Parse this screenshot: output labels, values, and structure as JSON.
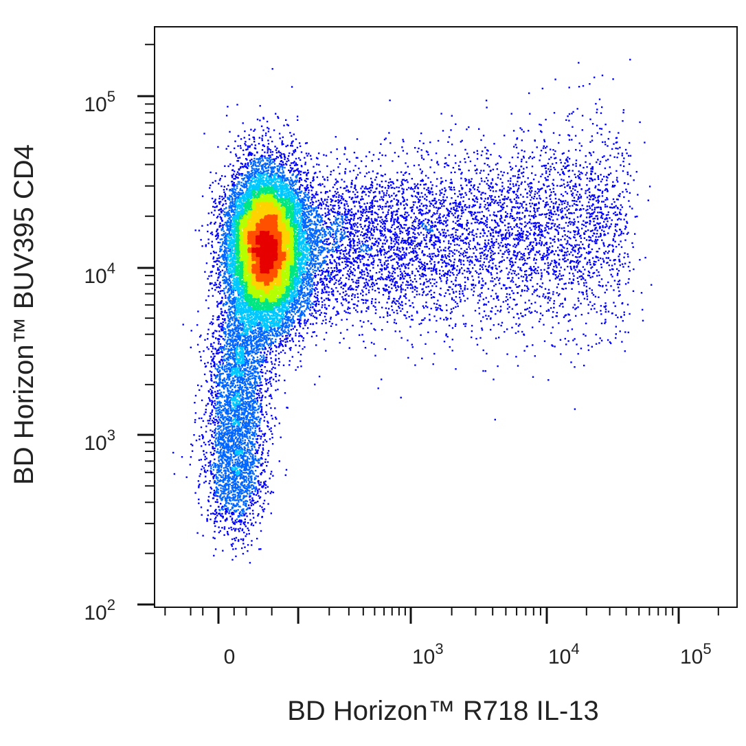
{
  "chart_data": {
    "type": "scatter",
    "title": "",
    "xlabel": "BD Horizon™ R718 IL-13",
    "ylabel": "BD Horizon™ BUV395 CD4",
    "x_scale": "biexponential (logicle)",
    "y_scale": "log",
    "x_tick_labels": [
      {
        "value": 0,
        "label": "0"
      },
      {
        "value": 1000,
        "base": "10",
        "exp": "3"
      },
      {
        "value": 10000,
        "base": "10",
        "exp": "4"
      },
      {
        "value": 100000,
        "base": "10",
        "exp": "5"
      }
    ],
    "y_tick_labels": [
      {
        "value": 100,
        "base": "10",
        "exp": "2"
      },
      {
        "value": 1000,
        "base": "10",
        "exp": "3"
      },
      {
        "value": 10000,
        "base": "10",
        "exp": "4"
      },
      {
        "value": 100000,
        "base": "10",
        "exp": "5"
      }
    ],
    "xlim": [
      -250,
      250000
    ],
    "ylim": [
      100,
      250000
    ],
    "grid": false,
    "legend": "none",
    "colormap": [
      "#0000ff",
      "#0066ff",
      "#00c8ff",
      "#00e680",
      "#b4ff00",
      "#ffd200",
      "#ff5000",
      "#e60000"
    ],
    "populations": [
      {
        "name": "main",
        "center": {
          "x": 40,
          "y": 13000
        },
        "fraction": 0.6
      },
      {
        "name": "low-cd4 tail",
        "center": {
          "x": 20,
          "y": 1300
        },
        "fraction": 0.15
      },
      {
        "name": "il13-positive spread",
        "center": {
          "x": 2500,
          "y": 14000
        },
        "fraction": 0.25
      }
    ]
  }
}
